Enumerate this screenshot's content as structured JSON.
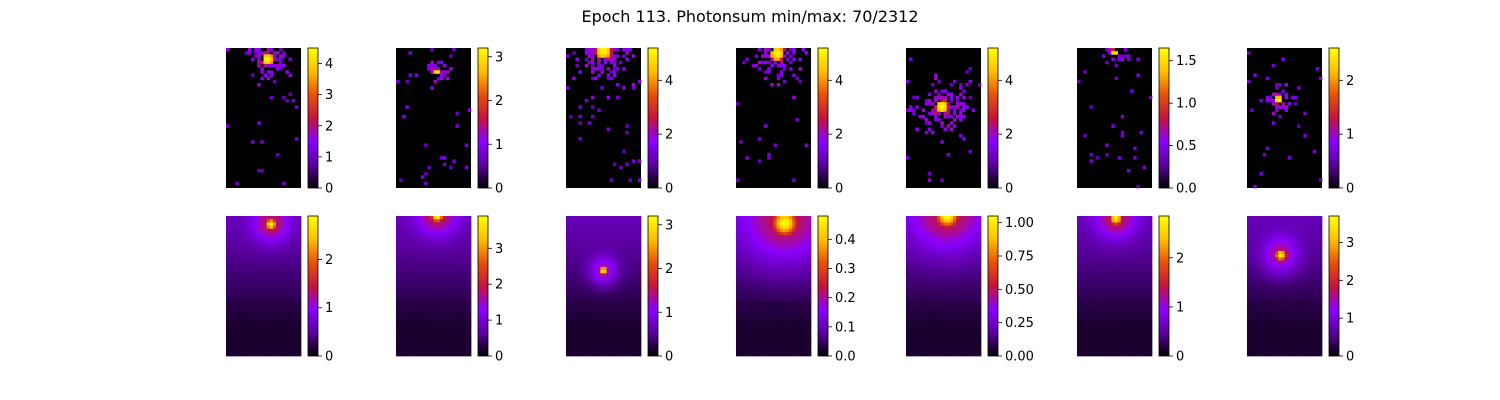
{
  "chart_data": {
    "type": "heatmap",
    "title": "Epoch 113. Photonsum min/max: 70/2312",
    "colormap": "gnuplot",
    "colormap_stops": [
      "#000000",
      "#5a00a0",
      "#8b00ff",
      "#c4143c",
      "#e8520a",
      "#ffbf00",
      "#ffff00"
    ],
    "rows": [
      {
        "row": "top",
        "style": "sparse",
        "panels": [
          {
            "hotspot": [
              0.55,
              0.08
            ],
            "spread": 0.22,
            "vmin": 0,
            "vmax": 4.5,
            "ticks": [
              "0",
              "1",
              "2",
              "3",
              "4"
            ]
          },
          {
            "hotspot": [
              0.55,
              0.17
            ],
            "spread": 0.12,
            "vmin": 0,
            "vmax": 3.2,
            "ticks": [
              "0",
              "1",
              "2",
              "3"
            ]
          },
          {
            "hotspot": [
              0.5,
              0.02
            ],
            "spread": 0.3,
            "vmin": 0,
            "vmax": 5.2,
            "ticks": [
              "0",
              "2",
              "4"
            ]
          },
          {
            "hotspot": [
              0.55,
              0.04
            ],
            "spread": 0.25,
            "vmin": 0,
            "vmax": 5.2,
            "ticks": [
              "0",
              "2",
              "4"
            ]
          },
          {
            "hotspot": [
              0.48,
              0.42
            ],
            "spread": 0.25,
            "vmin": 0,
            "vmax": 5.2,
            "ticks": [
              "0",
              "2",
              "4"
            ]
          },
          {
            "hotspot": [
              0.5,
              0.03
            ],
            "spread": 0.12,
            "vmin": 0,
            "vmax": 1.65,
            "ticks": [
              "0.0",
              "0.5",
              "1.0",
              "1.5"
            ]
          },
          {
            "hotspot": [
              0.42,
              0.37
            ],
            "spread": 0.15,
            "vmin": 0,
            "vmax": 2.6,
            "ticks": [
              "0",
              "1",
              "2"
            ]
          }
        ]
      },
      {
        "row": "bottom",
        "style": "smooth",
        "panels": [
          {
            "hotspot": [
              0.6,
              0.06
            ],
            "spread": 0.2,
            "vmin": 0,
            "vmax": 2.9,
            "ticks": [
              "0",
              "1",
              "2"
            ]
          },
          {
            "hotspot": [
              0.55,
              0.0
            ],
            "spread": 0.22,
            "vmin": 0,
            "vmax": 3.9,
            "ticks": [
              "0",
              "1",
              "2",
              "3"
            ]
          },
          {
            "hotspot": [
              0.5,
              0.39
            ],
            "spread": 0.15,
            "vmin": 0,
            "vmax": 3.2,
            "ticks": [
              "0",
              "1",
              "2",
              "3"
            ]
          },
          {
            "hotspot": [
              0.65,
              0.05
            ],
            "spread": 0.45,
            "vmin": 0,
            "vmax": 0.48,
            "ticks": [
              "0.0",
              "0.1",
              "0.2",
              "0.3",
              "0.4"
            ]
          },
          {
            "hotspot": [
              0.55,
              0.0
            ],
            "spread": 0.4,
            "vmin": 0,
            "vmax": 1.05,
            "ticks": [
              "0.00",
              "0.25",
              "0.50",
              "0.75",
              "1.00"
            ]
          },
          {
            "hotspot": [
              0.52,
              0.02
            ],
            "spread": 0.22,
            "vmin": 0,
            "vmax": 2.85,
            "ticks": [
              "0",
              "1",
              "2"
            ]
          },
          {
            "hotspot": [
              0.45,
              0.28
            ],
            "spread": 0.2,
            "vmin": 0,
            "vmax": 3.7,
            "ticks": [
              "0",
              "1",
              "2",
              "3"
            ]
          }
        ]
      }
    ]
  }
}
